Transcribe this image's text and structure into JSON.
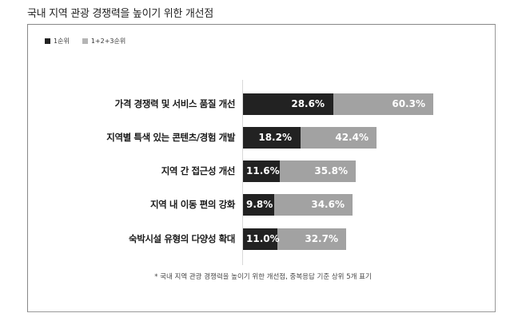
{
  "title": "국내 지역 관광 경쟁력을 높이기 위한 개선점",
  "legend": [
    {
      "label": "1순위",
      "color": "#222222"
    },
    {
      "label": "1+2+3순위",
      "color": "#a2a2a2"
    }
  ],
  "rows": [
    {
      "label": "가격 경쟁력 및 서비스 품질 개선",
      "first": "28.6%",
      "top3": "60.3%"
    },
    {
      "label": "지역별 특색 있는 콘텐츠/경험 개발",
      "first": "18.2%",
      "top3": "42.4%"
    },
    {
      "label": "지역 간 접근성 개선",
      "first": "11.6%",
      "top3": "35.8%"
    },
    {
      "label": "지역 내 이동 편의 강화",
      "first": "9.8%",
      "top3": "34.6%"
    },
    {
      "label": "숙박시설 유형의 다양성 확대",
      "first": "11.0%",
      "top3": "32.7%"
    }
  ],
  "footnote": "* 국내 지역 관광 경쟁력을 높이기 위한 개선점, 중복응답 기준 상위 5개 표기",
  "chart_data": {
    "type": "bar",
    "orientation": "horizontal",
    "title": "국내 지역 관광 경쟁력을 높이기 위한 개선점",
    "categories": [
      "가격 경쟁력 및 서비스 품질 개선",
      "지역별 특색 있는 콘텐츠/경험 개발",
      "지역 간 접근성 개선",
      "지역 내 이동 편의 강화",
      "숙박시설 유형의 다양성 확대"
    ],
    "series": [
      {
        "name": "1순위",
        "values": [
          28.6,
          18.2,
          11.6,
          9.8,
          11.0
        ],
        "color": "#222222"
      },
      {
        "name": "1+2+3순위",
        "values": [
          60.3,
          42.4,
          35.8,
          34.6,
          32.7
        ],
        "color": "#a2a2a2"
      }
    ],
    "unit": "%",
    "legend_position": "top-left",
    "grid": false,
    "annotations": [
      "* 국내 지역 관광 경쟁력을 높이기 위한 개선점, 중복응답 기준 상위 5개 표기"
    ]
  }
}
